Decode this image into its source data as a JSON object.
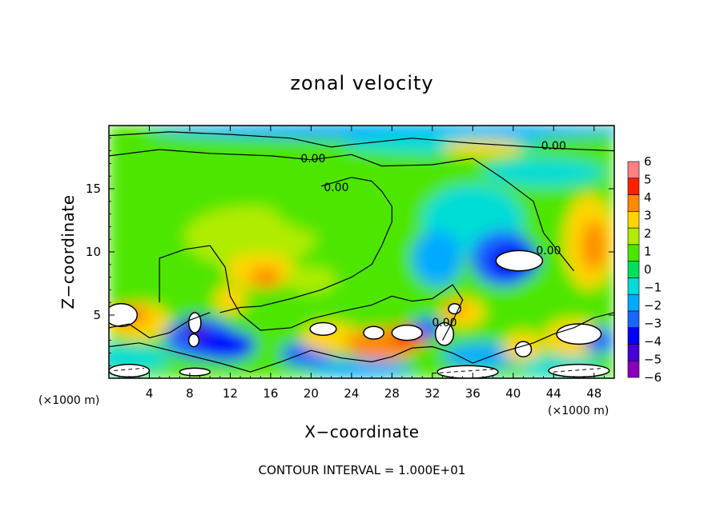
{
  "chart_data": {
    "type": "heatmap",
    "title": "zonal velocity",
    "xlabel": "X−coordinate",
    "ylabel": "Z−coordinate",
    "x_unit_label": "(×1000 m)",
    "z_unit_label": "(×1000 m)",
    "xlim": [
      0,
      50
    ],
    "ylim": [
      0,
      20
    ],
    "x_ticks": [
      4,
      8,
      12,
      16,
      20,
      24,
      28,
      32,
      36,
      40,
      44,
      48
    ],
    "x_tick_labels": [
      "4",
      "8",
      "12",
      "16",
      "20",
      "24",
      "28",
      "32",
      "36",
      "40",
      "44",
      "48"
    ],
    "y_ticks": [
      5,
      10,
      15
    ],
    "y_tick_labels": [
      "5",
      "10",
      "15"
    ],
    "colorbar": {
      "min": -6,
      "max": 6,
      "ticks": [
        6,
        5,
        4,
        3,
        2,
        1,
        0,
        -1,
        -2,
        -3,
        -4,
        -5,
        -6
      ],
      "tick_labels": [
        "6",
        "5",
        "4",
        "3",
        "2",
        "1",
        "0",
        "−1",
        "−2",
        "−3",
        "−4",
        "−5",
        "−6"
      ],
      "colors": [
        "#8a00b8",
        "#4600d6",
        "#0000ff",
        "#1a64ff",
        "#00aaff",
        "#00ddd6",
        "#00e05a",
        "#4ee600",
        "#b0ec00",
        "#ffd500",
        "#ff8a00",
        "#ff2000",
        "#ff8080"
      ]
    },
    "contour_labels": [
      "0.00",
      "0.00",
      "0.00",
      "0.00",
      "0.00"
    ],
    "footer": "CONTOUR INTERVAL = 1.000E+01"
  }
}
